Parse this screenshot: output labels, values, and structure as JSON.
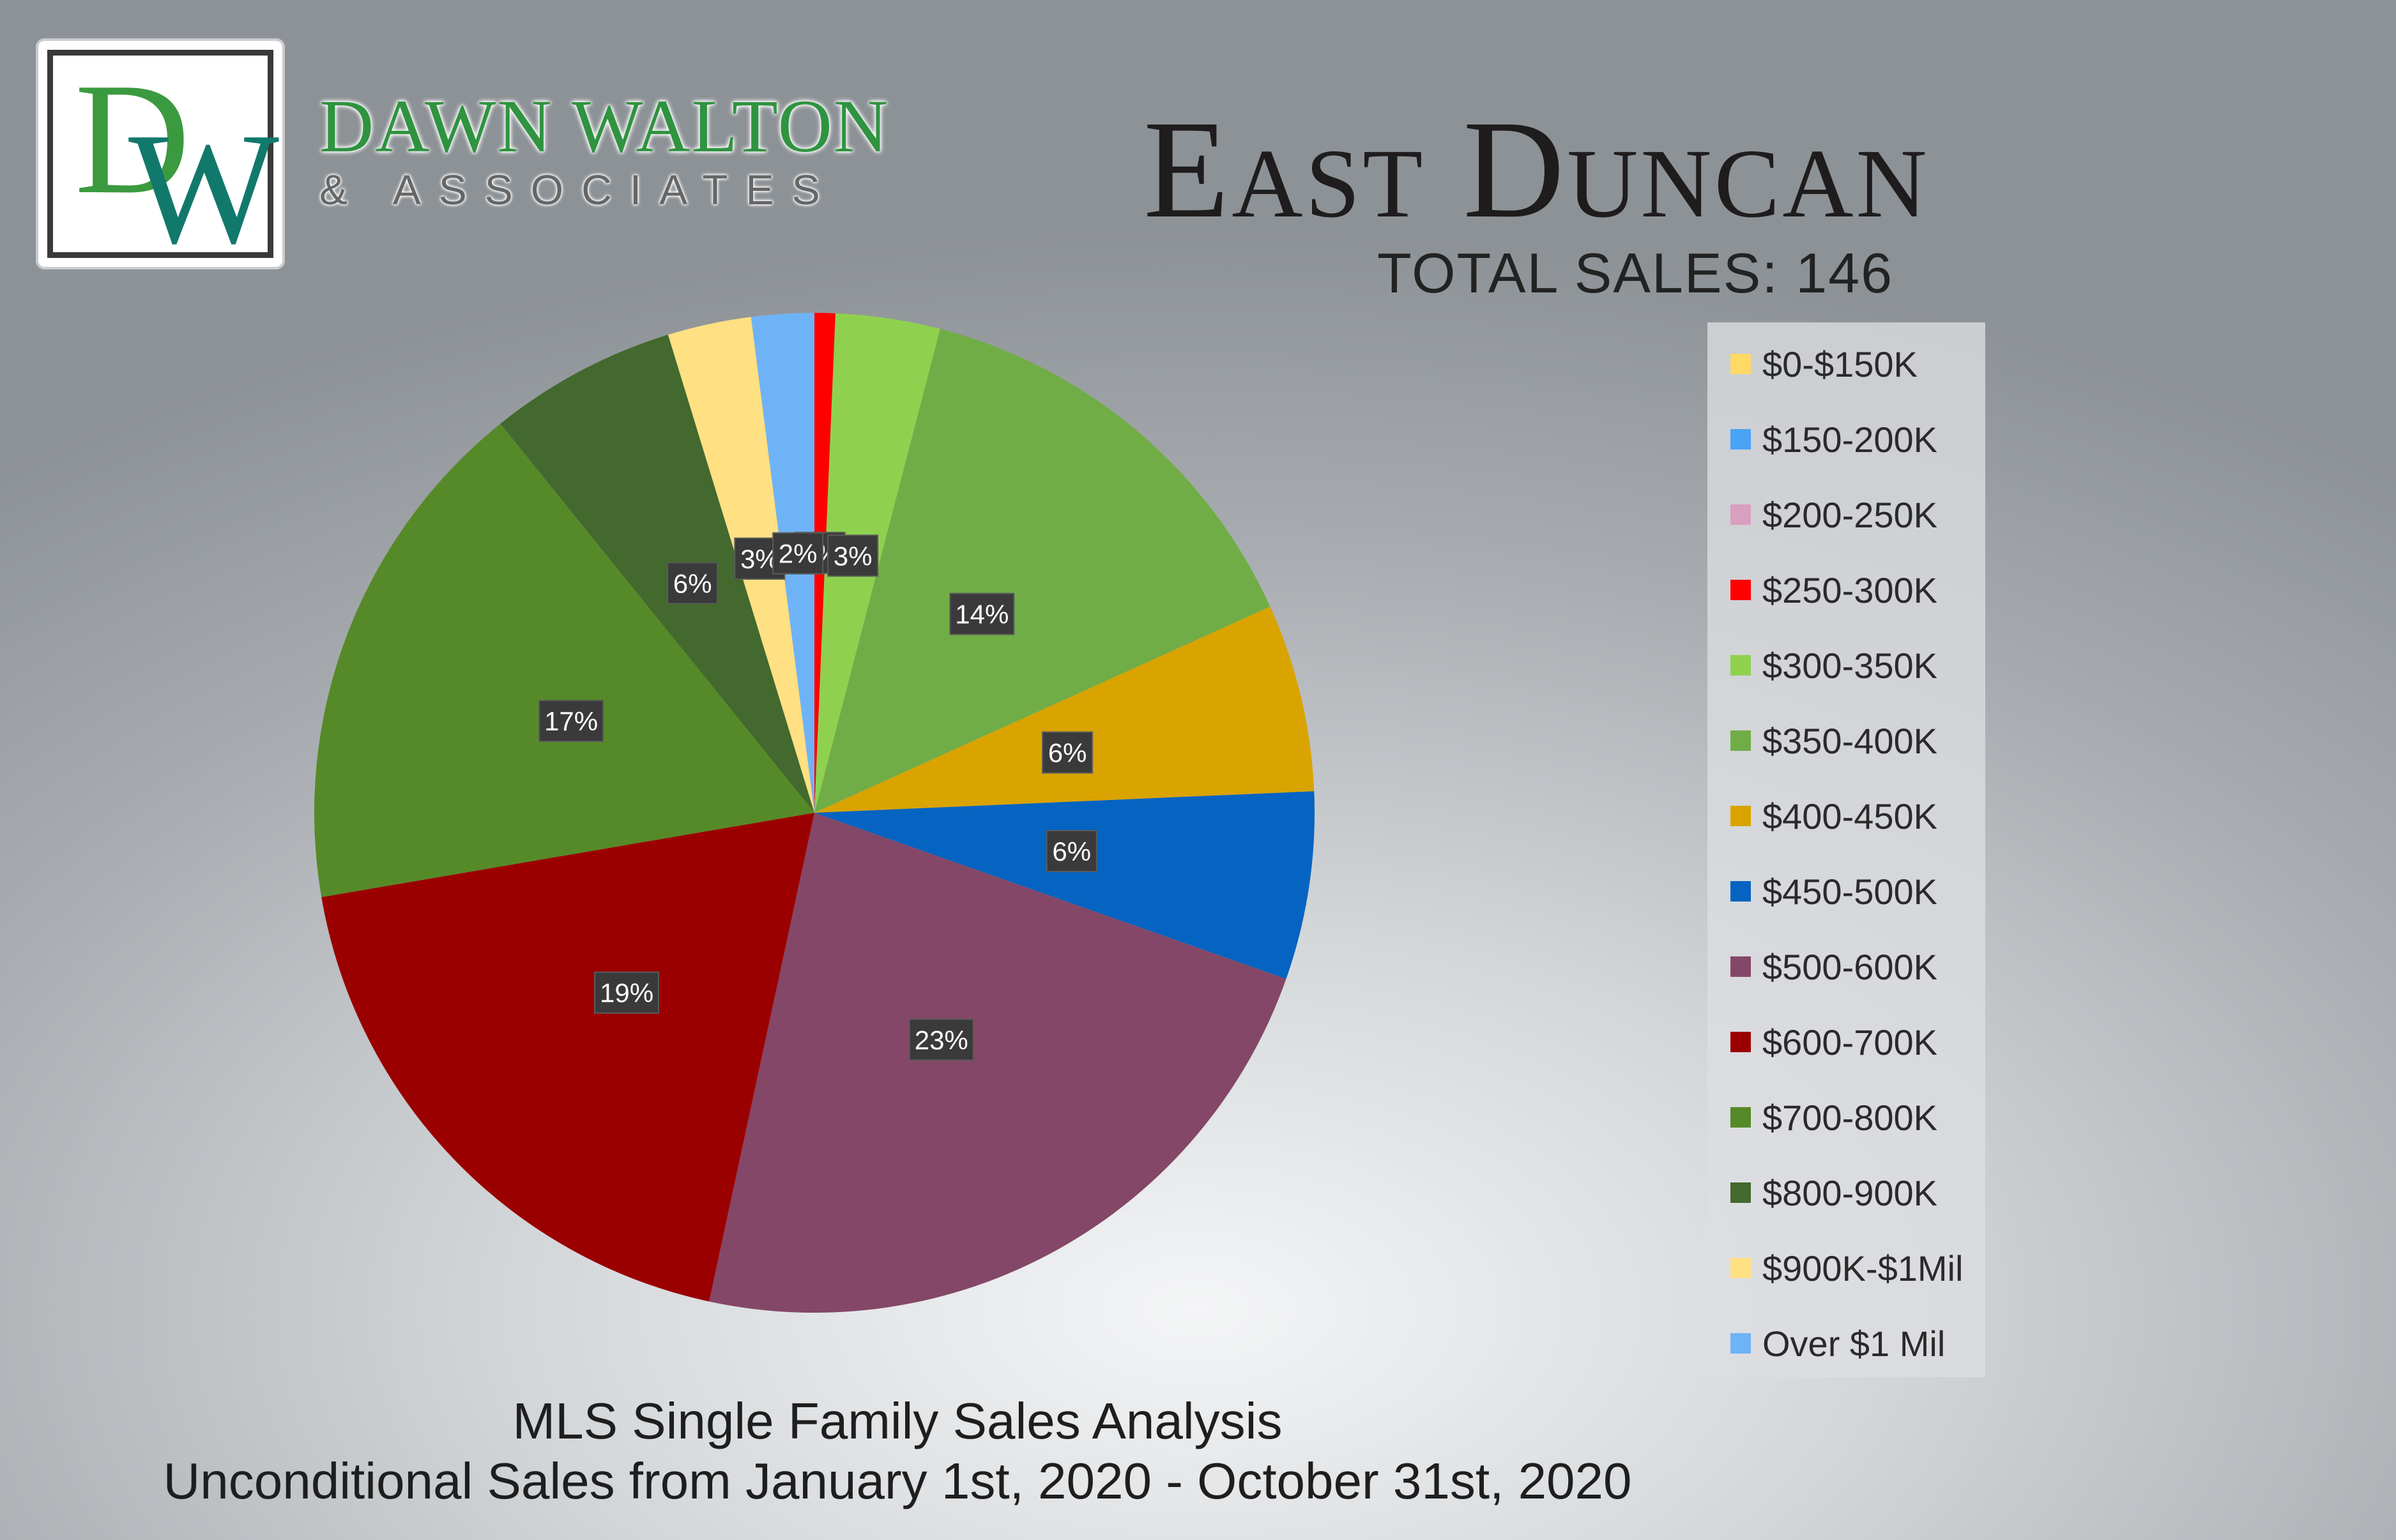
{
  "brand": {
    "logo_letters": [
      "D",
      "W"
    ],
    "name": "DAWN WALTON",
    "sub": "& ASSOCIATES",
    "colors": {
      "green": "#3b9a3f",
      "teal": "#11796c"
    }
  },
  "header": {
    "region": "East Duncan",
    "total_sales": "TOTAL SALES: 146"
  },
  "footer": {
    "title": "MLS Single Family Sales Analysis",
    "subtitle": "Unconditional Sales from January 1st, 2020 - October 31st, 2020"
  },
  "chart_data": {
    "type": "pie",
    "title": "",
    "total": 146,
    "legend_position": "right",
    "start_angle_deg": 0,
    "direction": "clockwise",
    "slices": [
      {
        "name": "$0-$150K",
        "value": 0,
        "label": "",
        "color": "#ffd966"
      },
      {
        "name": "$150-200K",
        "value": 0,
        "label": "",
        "color": "#4aa3f5"
      },
      {
        "name": "$200-250K",
        "value": 0,
        "label": "",
        "color": "#d89fc0"
      },
      {
        "name": "$250-300K",
        "value": 0.68,
        "label": "1%",
        "color": "#ff0000"
      },
      {
        "name": "$300-350K",
        "value": 3.42,
        "label": "3%",
        "color": "#8fd14f"
      },
      {
        "name": "$350-400K",
        "value": 14.38,
        "label": "14%",
        "color": "#70ad47"
      },
      {
        "name": "$400-450K",
        "value": 6.16,
        "label": "6%",
        "color": "#d9a300"
      },
      {
        "name": "$450-500K",
        "value": 6.16,
        "label": "6%",
        "color": "#0563c1"
      },
      {
        "name": "$500-600K",
        "value": 23.29,
        "label": "23%",
        "color": "#844767"
      },
      {
        "name": "$600-700K",
        "value": 19.18,
        "label": "19%",
        "color": "#9b0000"
      },
      {
        "name": "$700-800K",
        "value": 17.12,
        "label": "17%",
        "color": "#568a28"
      },
      {
        "name": "$800-900K",
        "value": 6.16,
        "label": "6%",
        "color": "#43692e"
      },
      {
        "name": "$900K-$1Mil",
        "value": 2.74,
        "label": "3%",
        "color": "#ffe082"
      },
      {
        "name": "Over $1 Mil",
        "value": 2.05,
        "label": "2%",
        "color": "#6fb3f7"
      }
    ]
  }
}
